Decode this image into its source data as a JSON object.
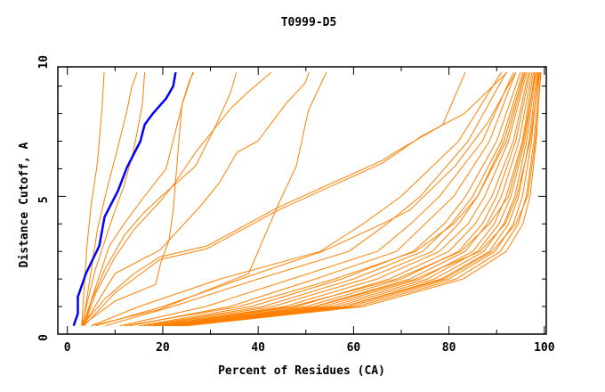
{
  "chart_data": {
    "type": "line",
    "title": "T0999-D5",
    "xlabel": "Percent of Residues (CA)",
    "ylabel": "Distance Cutoff, A",
    "xlim": [
      -2,
      100.4
    ],
    "ylim": [
      0,
      9.7
    ],
    "xticks": [
      0,
      20,
      40,
      60,
      80,
      100
    ],
    "yticks": [
      0,
      5,
      10
    ],
    "grid": false,
    "legend": "none",
    "colors": {
      "highlight": "#0000ff",
      "others": "#ff8000",
      "axis": "#000000"
    },
    "highlight_series": {
      "x": [
        1.3,
        2.2,
        2.2,
        3.9,
        6.7,
        7.8,
        10.6,
        12.5,
        15.3,
        16.2,
        17.9,
        20.7,
        22.2,
        22.7
      ],
      "y": [
        0.3,
        0.74,
        1.35,
        2.2,
        3.2,
        4.25,
        5.2,
        6.05,
        7.0,
        7.6,
        8.0,
        8.55,
        9.0,
        9.5
      ]
    },
    "series": [
      {
        "x": [
          3,
          4.1,
          5,
          6.3,
          7.3,
          7.7
        ],
        "y": [
          0.3,
          3.2,
          4.7,
          6.2,
          8.3,
          9.5
        ]
      },
      {
        "x": [
          3.2,
          6.3,
          8.2,
          10.6,
          12.5,
          13.4,
          14.6
        ],
        "y": [
          0.3,
          3.8,
          5.2,
          6.8,
          8.1,
          8.9,
          9.5
        ]
      },
      {
        "x": [
          3,
          5.8,
          9.5,
          11.9,
          13.8,
          15.7,
          16.2
        ],
        "y": [
          0.3,
          2.3,
          4.25,
          5.4,
          6.6,
          8.3,
          9.5
        ]
      },
      {
        "x": [
          3.2,
          6.3,
          8.8,
          11.9,
          15.7,
          20.7,
          24.4,
          25.6,
          26.5
        ],
        "y": [
          0.3,
          1.9,
          3.2,
          4.0,
          4.9,
          6.0,
          8.55,
          9.2,
          9.5
        ]
      },
      {
        "x": [
          3,
          10,
          18.5,
          19.6,
          21.3,
          22.2,
          22.9,
          24.0,
          26.3
        ],
        "y": [
          0.3,
          1.2,
          1.8,
          2.6,
          3.4,
          4.5,
          6.0,
          8.3,
          9.5
        ]
      },
      {
        "x": [
          3.5,
          5,
          8,
          12,
          16,
          19.4,
          26.9,
          31.2,
          34.3,
          35.4
        ],
        "y": [
          0.3,
          1.2,
          2.4,
          3.6,
          4.4,
          4.95,
          6.1,
          7.6,
          8.8,
          9.5
        ]
      },
      {
        "x": [
          3.5,
          6,
          10,
          14,
          19.4,
          22.6,
          26.9,
          34.3,
          38,
          42.7
        ],
        "y": [
          0.3,
          1.5,
          2.8,
          3.8,
          4.8,
          5.5,
          6.6,
          8.2,
          8.8,
          9.5
        ]
      },
      {
        "x": [
          4,
          10,
          19.4,
          28.2,
          31.9,
          35.6,
          39.9,
          46,
          49.8,
          50.7
        ],
        "y": [
          0.5,
          2.2,
          3.05,
          4.7,
          5.5,
          6.6,
          7.0,
          8.4,
          9.1,
          9.5
        ]
      },
      {
        "x": [
          3,
          8,
          14,
          19.4,
          29.3,
          44.2,
          66,
          68.7,
          78.7,
          83.4
        ],
        "y": [
          0.3,
          1.3,
          2.2,
          2.8,
          3.2,
          4.6,
          6.3,
          6.6,
          7.6,
          9.5
        ]
      },
      {
        "x": [
          3.5,
          10,
          19.4,
          29.3,
          44.2,
          66,
          74.4,
          83.2,
          92.2
        ],
        "y": [
          0.3,
          1.5,
          2.7,
          3.1,
          4.5,
          6.2,
          7.2,
          8.0,
          9.5
        ]
      },
      {
        "x": [
          5,
          19.4,
          38,
          44.2,
          48,
          50.5,
          54.3
        ],
        "y": [
          0.3,
          0.9,
          2.2,
          4.7,
          6.1,
          8.1,
          9.5
        ]
      },
      {
        "x": [
          6,
          20,
          38,
          53.5,
          66,
          71.8,
          81.3,
          88.2,
          94
        ],
        "y": [
          0.3,
          1.0,
          2.1,
          3.0,
          4.0,
          4.5,
          6.1,
          7.7,
          9.5
        ]
      },
      {
        "x": [
          5,
          15,
          32,
          53,
          62,
          70,
          82,
          91
        ],
        "y": [
          0.3,
          1,
          2,
          3,
          4,
          5,
          7,
          9.5
        ]
      },
      {
        "x": [
          8,
          22,
          40,
          59,
          67,
          74,
          84,
          92
        ],
        "y": [
          0.3,
          1,
          2,
          3,
          4,
          5,
          7,
          9.5
        ]
      },
      {
        "x": [
          11,
          29,
          47,
          65,
          72,
          78,
          87,
          93.5
        ],
        "y": [
          0.3,
          1,
          2,
          3,
          4,
          5,
          7,
          9.5
        ]
      },
      {
        "x": [
          13,
          34,
          52,
          69,
          75,
          81,
          88.5,
          94
        ],
        "y": [
          0.3,
          1,
          2,
          3,
          4,
          5,
          7,
          9.5
        ]
      },
      {
        "x": [
          15,
          38.5,
          57.5,
          72.5,
          79,
          83.5,
          90,
          95
        ],
        "y": [
          0.3,
          1,
          2,
          3,
          4,
          5,
          7,
          9.5
        ]
      },
      {
        "x": [
          16,
          41,
          60,
          74.5,
          80.5,
          85,
          91,
          95.5
        ],
        "y": [
          0.3,
          1,
          2,
          3,
          4,
          5,
          7,
          9.5
        ]
      },
      {
        "x": [
          17,
          43,
          62.5,
          76.5,
          82,
          86,
          92,
          96
        ],
        "y": [
          0.3,
          1,
          2,
          3,
          4,
          5,
          7,
          9.5
        ]
      },
      {
        "x": [
          18,
          45.5,
          65,
          78,
          84,
          87.5,
          92.5,
          96.3
        ],
        "y": [
          0.3,
          1,
          2,
          3,
          4,
          5,
          7,
          9.5
        ]
      },
      {
        "x": [
          19,
          48,
          67.5,
          80,
          85.5,
          89,
          93.5,
          96.7
        ],
        "y": [
          0.3,
          1,
          2,
          3,
          4,
          5,
          7,
          9.5
        ]
      },
      {
        "x": [
          20,
          50,
          70,
          82,
          87,
          90,
          94,
          97
        ],
        "y": [
          0.3,
          1,
          2,
          3,
          4,
          5,
          7,
          9.5
        ]
      },
      {
        "x": [
          20.6,
          51.7,
          71.8,
          83.4,
          88,
          91,
          94.7,
          97.4
        ],
        "y": [
          0.3,
          1,
          2,
          3,
          4,
          5,
          7,
          9.5
        ]
      },
      {
        "x": [
          21.4,
          53.5,
          74,
          85,
          89.5,
          92,
          95.4,
          97.7
        ],
        "y": [
          0.3,
          1,
          2,
          3,
          4,
          5,
          7,
          9.5
        ]
      },
      {
        "x": [
          22,
          55,
          75.5,
          86,
          90.5,
          93,
          95.9,
          98
        ],
        "y": [
          0.3,
          1,
          2,
          3,
          4,
          5,
          7,
          9.5
        ]
      },
      {
        "x": [
          22.6,
          56.4,
          77,
          87.3,
          91.5,
          93.8,
          96.3,
          98.2
        ],
        "y": [
          0.3,
          1,
          2,
          3,
          4,
          5,
          7,
          9.5
        ]
      },
      {
        "x": [
          23.2,
          57.8,
          78.4,
          88.5,
          92.5,
          94.6,
          96.8,
          98.5
        ],
        "y": [
          0.3,
          1,
          2,
          3,
          4,
          5,
          7,
          9.5
        ]
      },
      {
        "x": [
          23.8,
          59.2,
          80,
          89.7,
          93.5,
          95.4,
          97.3,
          98.7
        ],
        "y": [
          0.3,
          1,
          2,
          3,
          4,
          5,
          7,
          9.5
        ]
      },
      {
        "x": [
          24.4,
          60.6,
          81.5,
          90.8,
          94.5,
          96.2,
          97.8,
          99
        ],
        "y": [
          0.3,
          1,
          2,
          3,
          4,
          5,
          7,
          9.5
        ]
      },
      {
        "x": [
          25,
          62,
          83,
          92,
          95.5,
          97,
          98.3,
          99.2
        ],
        "y": [
          0.3,
          1,
          2,
          3,
          4,
          5,
          7,
          9.5
        ]
      },
      {
        "x": [
          12,
          36,
          56,
          73,
          81,
          86,
          91.5,
          95.8
        ],
        "y": [
          0.3,
          1,
          2,
          3,
          4,
          5,
          7,
          9.5
        ]
      },
      {
        "x": [
          18,
          47,
          69,
          82.5,
          88.5,
          92.5,
          95.6,
          98.1
        ],
        "y": [
          0.3,
          1,
          2,
          3,
          4,
          5,
          7,
          9.5
        ]
      },
      {
        "x": [
          21,
          52,
          73,
          86.5,
          91.8,
          94.2,
          97,
          98.9
        ],
        "y": [
          0.3,
          1,
          2,
          3,
          4,
          5,
          7,
          9.5
        ]
      },
      {
        "x": [
          24,
          58,
          79,
          89,
          94,
          96.5,
          98.1,
          99.3
        ],
        "y": [
          0.3,
          1,
          2,
          3,
          4,
          5,
          7,
          9.5
        ]
      }
    ]
  }
}
